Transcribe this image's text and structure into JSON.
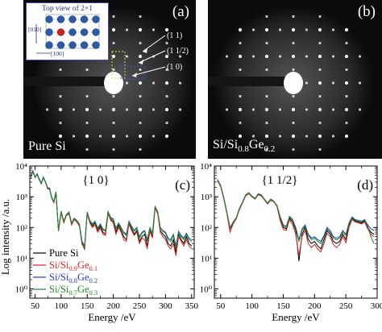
{
  "figure": {
    "leed_a": {
      "panel_letter": "(a)",
      "sample_label": "Pure Si",
      "inset": {
        "title": "Top view of 2×1",
        "axis_vertical": "[010]",
        "axis_horizontal": "[100]"
      },
      "spot_labels": [
        "(1 1)",
        "(1 1/2)",
        "(1 0)"
      ]
    },
    "leed_b": {
      "panel_letter": "(b)",
      "sample_label_main": "Si/Si",
      "sample_label_sub1": "0.8",
      "sample_label_mid": "Ge",
      "sample_label_sub2": "0.2"
    },
    "colors": {
      "pure_si": "#000000",
      "ge01": "#e02020",
      "ge02": "#1f3ad6",
      "ge03": "#1e8a1e"
    }
  },
  "chart_data": [
    {
      "type": "line",
      "panel_letter": "(c)",
      "title": "{1 0}",
      "xlabel": "Energy /eV",
      "ylabel": "Log intensity /a.u.",
      "xlim": [
        40,
        355
      ],
      "ylim": [
        0.5,
        10000
      ],
      "yscale": "log",
      "xticks": [
        50,
        100,
        150,
        200,
        250,
        300,
        350
      ],
      "yticks": [
        1,
        10,
        100,
        1000,
        10000
      ],
      "ytick_labels": [
        "10⁰",
        "10¹",
        "10²",
        "10³",
        "10⁴"
      ],
      "legend_position": "bottom-left",
      "legend": [
        {
          "main": "Pure Si",
          "sub1": "",
          "mid": "",
          "sub2": ""
        },
        {
          "main": "Si/Si",
          "sub1": "0.9",
          "mid": "Ge",
          "sub2": "0.1"
        },
        {
          "main": "Si/Si",
          "sub1": "0.8",
          "mid": "Ge",
          "sub2": "0.2"
        },
        {
          "main": "Si/Si",
          "sub1": "0.7",
          "mid": "Ge",
          "sub2": "0.3"
        }
      ],
      "series": [
        {
          "color": "#000000",
          "x": [
            42,
            46,
            50,
            54,
            58,
            62,
            66,
            70,
            74,
            78,
            82,
            86,
            90,
            95,
            100,
            105,
            110,
            115,
            120,
            125,
            130,
            135,
            140,
            145,
            150,
            155,
            160,
            165,
            170,
            175,
            180,
            185,
            190,
            195,
            200,
            205,
            210,
            215,
            220,
            225,
            230,
            235,
            240,
            245,
            250,
            255,
            260,
            265,
            270,
            275,
            280,
            285,
            290,
            295,
            300,
            305,
            310,
            315,
            320,
            325,
            330,
            335,
            340,
            345,
            350
          ],
          "y": [
            4500,
            6800,
            4200,
            5500,
            3600,
            2600,
            4300,
            3000,
            1900,
            1800,
            900,
            650,
            1400,
            80,
            320,
            150,
            250,
            300,
            130,
            190,
            160,
            120,
            30,
            20,
            300,
            150,
            110,
            140,
            80,
            110,
            70,
            60,
            300,
            180,
            160,
            70,
            120,
            80,
            50,
            40,
            140,
            90,
            60,
            80,
            35,
            50,
            60,
            25,
            80,
            50,
            450,
            300,
            80,
            60,
            50,
            30,
            25,
            40,
            15,
            60,
            40,
            30,
            50,
            30,
            25
          ]
        },
        {
          "color": "#e02020",
          "x": [
            42,
            46,
            50,
            54,
            58,
            62,
            66,
            70,
            74,
            78,
            82,
            86,
            90,
            95,
            100,
            105,
            110,
            115,
            120,
            125,
            130,
            135,
            140,
            145,
            150,
            155,
            160,
            165,
            170,
            175,
            180,
            185,
            190,
            195,
            200,
            205,
            210,
            215,
            220,
            225,
            230,
            235,
            240,
            245,
            250,
            255,
            260,
            265,
            270,
            275,
            280,
            285,
            290,
            295,
            300,
            305,
            310,
            315,
            320,
            325,
            330,
            335,
            340,
            345,
            350
          ],
          "y": [
            4200,
            6500,
            4300,
            5200,
            3500,
            2700,
            4100,
            2900,
            1800,
            1700,
            880,
            640,
            1300,
            75,
            300,
            140,
            240,
            280,
            120,
            180,
            150,
            110,
            28,
            22,
            280,
            140,
            100,
            120,
            70,
            95,
            60,
            55,
            280,
            170,
            140,
            60,
            100,
            70,
            40,
            35,
            130,
            80,
            55,
            70,
            30,
            45,
            40,
            20,
            75,
            45,
            420,
            280,
            70,
            50,
            40,
            25,
            20,
            30,
            12,
            50,
            35,
            25,
            40,
            25,
            20
          ]
        },
        {
          "color": "#1f3ad6",
          "x": [
            42,
            46,
            50,
            54,
            58,
            62,
            66,
            70,
            74,
            78,
            82,
            86,
            90,
            95,
            100,
            105,
            110,
            115,
            120,
            125,
            130,
            135,
            140,
            145,
            150,
            155,
            160,
            165,
            170,
            175,
            180,
            185,
            190,
            195,
            200,
            205,
            210,
            215,
            220,
            225,
            230,
            235,
            240,
            245,
            250,
            255,
            260,
            265,
            270,
            275,
            280,
            285,
            290,
            295,
            300,
            305,
            310,
            315,
            320,
            325,
            330,
            335,
            340,
            345,
            350
          ],
          "y": [
            4800,
            7000,
            4400,
            5600,
            3800,
            2800,
            4400,
            3100,
            2000,
            1900,
            950,
            700,
            1450,
            85,
            340,
            160,
            260,
            320,
            140,
            200,
            170,
            130,
            35,
            25,
            320,
            170,
            130,
            160,
            95,
            130,
            90,
            80,
            330,
            210,
            190,
            95,
            140,
            100,
            70,
            60,
            160,
            110,
            80,
            100,
            50,
            70,
            80,
            40,
            100,
            65,
            480,
            330,
            100,
            80,
            70,
            45,
            40,
            60,
            25,
            75,
            55,
            45,
            65,
            45,
            40
          ]
        },
        {
          "color": "#1e8a1e",
          "x": [
            42,
            46,
            50,
            54,
            58,
            62,
            66,
            70,
            74,
            78,
            82,
            86,
            90,
            95,
            100,
            105,
            110,
            115,
            120,
            125,
            130,
            135,
            140,
            145,
            150,
            155,
            160,
            165,
            170,
            175,
            180,
            185,
            190,
            195,
            200,
            205,
            210,
            215,
            220,
            225,
            230,
            235,
            240,
            245,
            250,
            255,
            260,
            265,
            270,
            275,
            280,
            285,
            290,
            295,
            300,
            305,
            310,
            315,
            320,
            325,
            330,
            335,
            340,
            345,
            350
          ],
          "y": [
            4400,
            6600,
            4300,
            5300,
            3700,
            2700,
            4200,
            3000,
            1900,
            1800,
            920,
            680,
            1380,
            82,
            330,
            155,
            255,
            310,
            135,
            195,
            165,
            125,
            32,
            24,
            310,
            165,
            120,
            150,
            90,
            120,
            85,
            75,
            320,
            200,
            180,
            90,
            130,
            95,
            65,
            55,
            150,
            105,
            75,
            95,
            45,
            65,
            75,
            35,
            95,
            60,
            470,
            320,
            95,
            75,
            65,
            40,
            35,
            55,
            20,
            70,
            50,
            40,
            60,
            40,
            35
          ]
        }
      ]
    },
    {
      "type": "line",
      "panel_letter": "(d)",
      "title": "{1 1/2}",
      "xlabel": "Energy /eV",
      "ylabel": "",
      "xlim": [
        40,
        300
      ],
      "ylim": [
        0.5,
        10000
      ],
      "yscale": "log",
      "xticks": [
        50,
        100,
        150,
        200,
        250,
        300
      ],
      "xtick_labels": [
        "50",
        "100",
        "150",
        "200",
        "250",
        "300"
      ],
      "yticks": [
        1,
        10,
        100,
        1000,
        10000
      ],
      "ytick_labels": [
        "10⁰",
        "10¹",
        "10²",
        "10³",
        "10⁴"
      ],
      "series": [
        {
          "color": "#000000",
          "x": [
            45,
            50,
            55,
            60,
            65,
            70,
            75,
            80,
            85,
            90,
            95,
            100,
            105,
            110,
            115,
            120,
            125,
            130,
            135,
            140,
            145,
            150,
            155,
            160,
            165,
            170,
            175,
            180,
            185,
            190,
            195,
            200,
            205,
            210,
            215,
            220,
            225,
            230,
            235,
            240,
            245,
            250,
            255,
            260,
            265,
            270,
            275,
            280,
            285,
            290,
            295
          ],
          "y": [
            3500,
            2200,
            900,
            300,
            90,
            140,
            200,
            400,
            650,
            1100,
            1300,
            1000,
            850,
            1200,
            1100,
            800,
            600,
            800,
            700,
            500,
            200,
            100,
            90,
            200,
            150,
            80,
            8,
            60,
            100,
            40,
            30,
            35,
            25,
            20,
            40,
            80,
            60,
            35,
            30,
            35,
            60,
            40,
            120,
            200,
            160,
            150,
            140,
            160,
            100,
            70,
            60
          ]
        },
        {
          "color": "#e02020",
          "x": [
            45,
            50,
            55,
            60,
            65,
            70,
            75,
            80,
            85,
            90,
            95,
            100,
            105,
            110,
            115,
            120,
            125,
            130,
            135,
            140,
            145,
            150,
            155,
            160,
            165,
            170,
            175,
            180,
            185,
            190,
            195,
            200,
            205,
            210,
            215,
            220,
            225,
            230,
            235,
            240,
            245,
            250,
            255,
            260,
            265,
            270,
            275,
            280,
            285,
            290,
            295
          ],
          "y": [
            3300,
            2100,
            850,
            280,
            70,
            130,
            190,
            380,
            630,
            1050,
            1250,
            980,
            830,
            1150,
            1050,
            780,
            580,
            760,
            680,
            480,
            170,
            85,
            80,
            180,
            120,
            60,
            12,
            50,
            80,
            30,
            22,
            28,
            20,
            16,
            30,
            65,
            50,
            28,
            22,
            28,
            50,
            32,
            100,
            180,
            150,
            140,
            130,
            150,
            90,
            60,
            50
          ]
        },
        {
          "color": "#1f3ad6",
          "x": [
            45,
            50,
            55,
            60,
            65,
            70,
            75,
            80,
            85,
            90,
            95,
            100,
            105,
            110,
            115,
            120,
            125,
            130,
            135,
            140,
            145,
            150,
            155,
            160,
            165,
            170,
            175,
            180,
            185,
            190,
            195,
            200,
            205,
            210,
            215,
            220,
            225,
            230,
            235,
            240,
            245,
            250,
            255,
            260,
            265,
            270,
            275,
            280,
            285,
            290,
            295
          ],
          "y": [
            3700,
            2300,
            950,
            320,
            100,
            150,
            210,
            420,
            680,
            1150,
            1350,
            1050,
            880,
            1250,
            1150,
            830,
            630,
            840,
            720,
            520,
            230,
            120,
            110,
            230,
            180,
            100,
            40,
            90,
            120,
            60,
            45,
            50,
            40,
            35,
            55,
            100,
            80,
            50,
            45,
            50,
            80,
            60,
            140,
            220,
            180,
            170,
            160,
            180,
            120,
            90,
            80
          ]
        },
        {
          "color": "#1e8a1e",
          "x": [
            45,
            50,
            55,
            60,
            65,
            70,
            75,
            80,
            85,
            90,
            95,
            100,
            105,
            110,
            115,
            120,
            125,
            130,
            135,
            140,
            145,
            150,
            155,
            160,
            165,
            170,
            175,
            180,
            185,
            190,
            195,
            200,
            205,
            210,
            215,
            220,
            225,
            230,
            235,
            240,
            245,
            250,
            255,
            260,
            265,
            270,
            275,
            280,
            285,
            290,
            295
          ],
          "y": [
            3600,
            2250,
            920,
            310,
            95,
            145,
            205,
            410,
            660,
            1120,
            1320,
            1020,
            860,
            1220,
            1120,
            810,
            610,
            820,
            710,
            510,
            220,
            110,
            100,
            220,
            170,
            95,
            35,
            80,
            110,
            55,
            40,
            45,
            35,
            30,
            50,
            90,
            70,
            45,
            40,
            45,
            70,
            55,
            130,
            210,
            170,
            160,
            150,
            170,
            110,
            50,
            30
          ]
        }
      ]
    }
  ]
}
